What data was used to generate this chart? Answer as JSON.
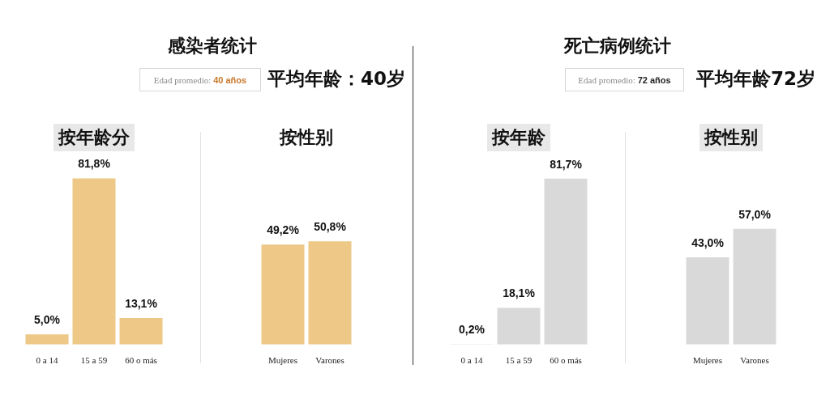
{
  "chart_data": [
    {
      "type": "other",
      "title": "感染者统计",
      "annotations": [
        "Edad promedio: 40 años",
        "平均年龄：40岁"
      ]
    },
    {
      "type": "bar",
      "title": "按年龄分",
      "categories": [
        "0 a 14",
        "15 a 59",
        "60 o más"
      ],
      "values": [
        5.0,
        81.8,
        13.1
      ],
      "value_labels": [
        "5,0%",
        "81,8%",
        "13,1%"
      ],
      "color": "#edc886",
      "tick_labels": "x"
    },
    {
      "type": "bar",
      "title": "按性别",
      "categories": [
        "Mujeres",
        "Varones"
      ],
      "values": [
        49.2,
        50.8
      ],
      "value_labels": [
        "49,2%",
        "50,8%"
      ],
      "color": "#edc886",
      "tick_labels": "x"
    },
    {
      "type": "other",
      "title": "死亡病例统计",
      "annotations": [
        "Edad promedio: 72 años",
        "平均年龄72岁"
      ]
    },
    {
      "type": "bar",
      "title": "按年龄",
      "categories": [
        "0 a 14",
        "15 a 59",
        "60 o más"
      ],
      "values": [
        0.2,
        18.1,
        81.7
      ],
      "value_labels": [
        "0,2%",
        "18,1%",
        "81,7%"
      ],
      "color": "#d9d9d9",
      "tick_labels": "x"
    },
    {
      "type": "bar",
      "title": "按性别",
      "categories": [
        "Mujeres",
        "Varones"
      ],
      "values": [
        43.0,
        57.0
      ],
      "value_labels": [
        "43,0%",
        "57,0%"
      ],
      "color": "#d9d9d9",
      "tick_labels": "x"
    }
  ]
}
